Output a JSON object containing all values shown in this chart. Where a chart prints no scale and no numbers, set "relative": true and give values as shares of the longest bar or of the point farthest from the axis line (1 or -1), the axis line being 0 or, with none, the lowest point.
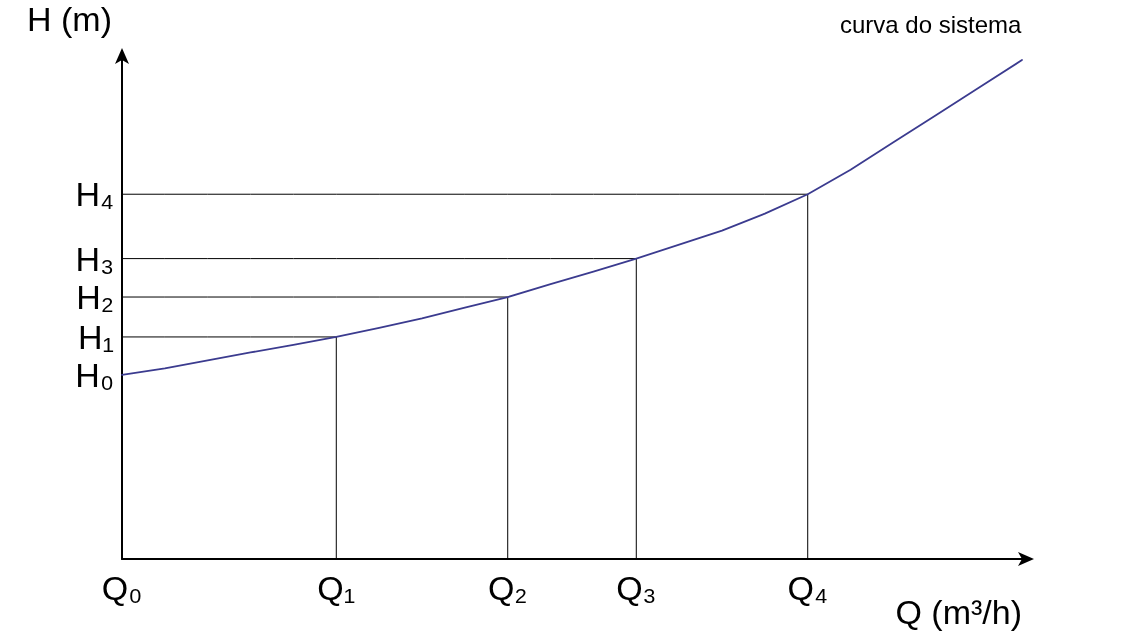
{
  "chart_data": {
    "type": "line",
    "relative": true,
    "xlabel": "Q (m³/h)",
    "ylabel": "H (m)",
    "categories": [
      "Q₀",
      null,
      null,
      null,
      null,
      "Q₁",
      null,
      null,
      null,
      "Q₂",
      null,
      null,
      "Q₃",
      null,
      null,
      null,
      "Q₄",
      null,
      null,
      null,
      null,
      null
    ],
    "grid": false,
    "marker": "none",
    "line_style": "solid",
    "annotations": [
      "H₀"
    ],
    "series": [
      {
        "name": "curva do sistema",
        "color": "#3b3b8f",
        "values": [
          0.369,
          0.382,
          0.398,
          0.414,
          0.429,
          0.445,
          0.463,
          0.482,
          0.504,
          0.525,
          0.551,
          0.576,
          0.602,
          0.63,
          0.658,
          0.692,
          0.731,
          0.78,
          0.835,
          0.89,
          0.945,
          1
        ]
      },
      {
        "name": "H₁",
        "color": "#000000",
        "values": [
          0.445,
          0.445,
          0.445,
          0.445,
          0.445,
          0.445,
          null,
          null,
          null,
          null,
          null,
          null,
          null,
          null,
          null,
          null,
          null,
          null,
          null,
          null,
          null,
          null
        ]
      },
      {
        "name": "H₂",
        "color": "#000000",
        "values": [
          0.525,
          0.525,
          0.525,
          0.525,
          0.525,
          0.525,
          0.525,
          0.525,
          0.525,
          0.525,
          null,
          null,
          null,
          null,
          null,
          null,
          null,
          null,
          null,
          null,
          null,
          null
        ]
      },
      {
        "name": "H₃",
        "color": "#000000",
        "values": [
          0.602,
          0.602,
          0.602,
          0.602,
          0.602,
          0.602,
          0.602,
          0.602,
          0.602,
          0.602,
          0.602,
          0.602,
          0.602,
          null,
          null,
          null,
          null,
          null,
          null,
          null,
          null,
          null
        ]
      },
      {
        "name": "H₄",
        "color": "#000000",
        "values": [
          0.731,
          0.731,
          0.731,
          0.731,
          0.731,
          0.731,
          0.731,
          0.731,
          0.731,
          0.731,
          0.731,
          0.731,
          0.731,
          0.731,
          0.731,
          0.731,
          0.731,
          null,
          null,
          null,
          null,
          null
        ]
      },
      {
        "type": "bar",
        "color": "#000000",
        "values": [
          null,
          null,
          null,
          null,
          null,
          0.445,
          null,
          null,
          null,
          0.525,
          null,
          null,
          0.602,
          null,
          null,
          null,
          0.731,
          null,
          null,
          null,
          null,
          null
        ]
      }
    ]
  }
}
